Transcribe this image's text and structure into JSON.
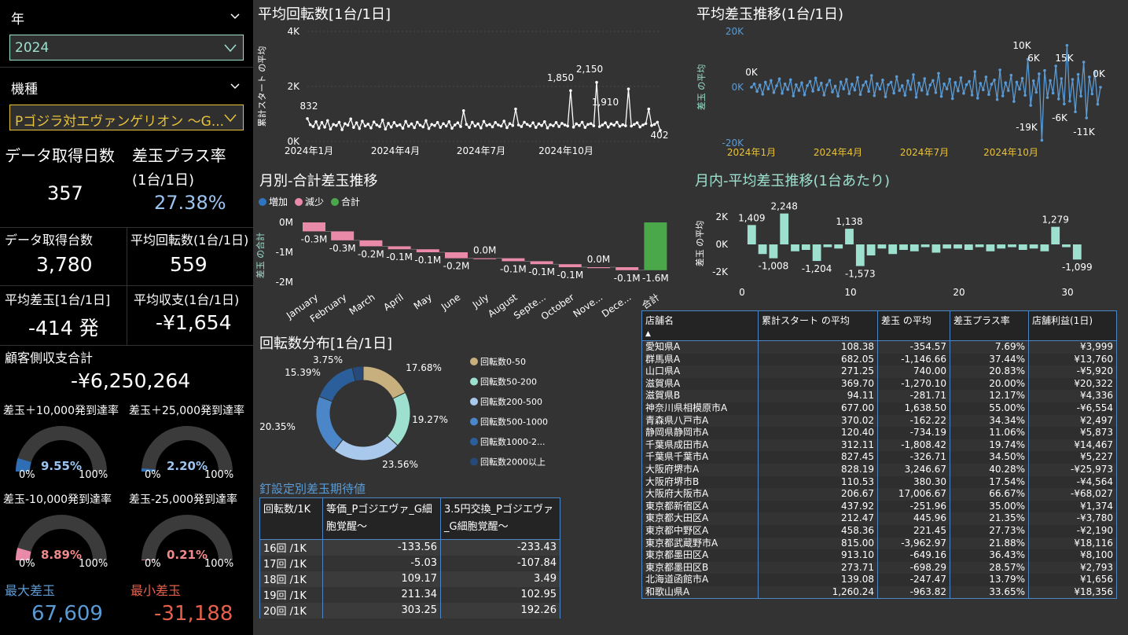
{
  "filters": {
    "year": {
      "title": "年",
      "value": "2024"
    },
    "machine": {
      "title": "機種",
      "value": "Pゴジラ対エヴァンゲリオン ～G..."
    }
  },
  "kpis": {
    "data_days": {
      "label": "データ取得日数",
      "value": "357"
    },
    "plus_rate": {
      "label": "差玉プラス率",
      "sub": "(1台/1日)",
      "value": "27.38%"
    },
    "data_units": {
      "label": "データ取得台数",
      "value": "3,780"
    },
    "avg_spins": {
      "label": "平均回転数(1台/1日)",
      "value": "559"
    },
    "avg_diff": {
      "label": "平均差玉[1台/1日]",
      "value": "-414 発"
    },
    "avg_balance": {
      "label": "平均収支(1台/1日)",
      "value": "-¥1,654"
    },
    "customer_total": {
      "label": "顧客側収支合計",
      "value": "-¥6,250,264"
    },
    "max_diff": {
      "label": "最大差玉",
      "value": "67,609"
    },
    "min_diff": {
      "label": "最小差玉",
      "value": "-31,188"
    }
  },
  "gauges": [
    {
      "label": "差玉＋10,000発到達率",
      "value": "9.55%",
      "fraction": 0.0955,
      "min": "0%",
      "max": "100%",
      "color": "#2f6db5",
      "text_color": "#9cc4f0"
    },
    {
      "label": "差玉＋25,000発到達率",
      "value": "2.20%",
      "fraction": 0.022,
      "min": "0%",
      "max": "100%",
      "color": "#2f6db5",
      "text_color": "#9cc4f0"
    },
    {
      "label": "差玉-10,000発到達率",
      "value": "8.89%",
      "fraction": 0.0889,
      "min": "0%",
      "max": "100%",
      "color": "#e98aa8",
      "text_color": "#f08a8a"
    },
    {
      "label": "差玉-25,000発到達率",
      "value": "0.21%",
      "fraction": 0.0021,
      "min": "0%",
      "max": "100%",
      "color": "#e98aa8",
      "text_color": "#f08a8a"
    }
  ],
  "visual_titles": {
    "avg_spins": "平均回転数[1台/1日]",
    "avg_diff_trend": "平均差玉推移(1台/1日)",
    "monthly_total": "月別-合計差玉推移",
    "intramonth": "月内-平均差玉推移(1台あたり)",
    "spin_dist": "回転数分布[1台/1日]",
    "nail_setting": "釘設定別差玉期待値"
  },
  "chart_data": [
    {
      "type": "line",
      "id": "avg_spins",
      "ylabel": "累計スタート の平均",
      "yticks": [
        "4K",
        "2K",
        "0K"
      ],
      "ylim": [
        0,
        4000
      ],
      "xticks": [
        "2024年1月",
        "2024年4月",
        "2024年7月",
        "2024年10月"
      ],
      "annotations": [
        "832",
        "1,850",
        "2,150",
        "1,910",
        "402"
      ],
      "series": [
        {
          "values": [
            832,
            610,
            540,
            720,
            480,
            690,
            520,
            760,
            450,
            620,
            580,
            700,
            430,
            650,
            590,
            820,
            510,
            680,
            470,
            740,
            560,
            630,
            490,
            710,
            600,
            540,
            780,
            450,
            660,
            520,
            690,
            570,
            610,
            480,
            730,
            550,
            640,
            500,
            700,
            590,
            530,
            760,
            470,
            620,
            580,
            690,
            510,
            650,
            560,
            720,
            480,
            600,
            680,
            540,
            1120,
            620,
            510,
            700,
            560,
            640,
            490,
            730,
            580,
            620,
            530,
            690,
            600,
            560,
            740,
            500,
            650,
            580,
            1180,
            600,
            540,
            700,
            620,
            560,
            680,
            510,
            640,
            580,
            720,
            490,
            610,
            570,
            690,
            540,
            660,
            600,
            560,
            1850,
            520,
            640,
            580,
            700,
            510,
            620,
            650,
            570,
            2150,
            540,
            600,
            680,
            520,
            640,
            590,
            700,
            550,
            610,
            570,
            1910,
            560,
            620,
            680,
            530,
            600,
            650,
            1180,
            580,
            620,
            700,
            402
          ]
        }
      ]
    },
    {
      "type": "line",
      "id": "avg_diff_trend",
      "ylabel": "差玉 の平均",
      "yticks": [
        "20K",
        "0K",
        "-20K"
      ],
      "ylim": [
        -20000,
        20000
      ],
      "xticks": [
        "2024年1月",
        "2024年4月",
        "2024年7月",
        "2024年10月"
      ],
      "annotations": [
        "0K",
        "10K",
        "6K",
        "15K",
        "0K",
        "-19K",
        "-6K",
        "-11K"
      ],
      "series": [
        {
          "values": [
            0,
            1200,
            -1500,
            800,
            -2500,
            1800,
            -600,
            2400,
            -1900,
            500,
            3000,
            -2200,
            1200,
            -800,
            2700,
            -3100,
            900,
            -1200,
            1600,
            -2700,
            600,
            2100,
            -1400,
            3300,
            -900,
            1500,
            -2800,
            800,
            2500,
            -1700,
            400,
            -3200,
            1900,
            -600,
            2800,
            -2300,
            1100,
            -1000,
            3500,
            -2600,
            700,
            2000,
            -1500,
            4200,
            -3000,
            1300,
            -700,
            2600,
            -3400,
            900,
            1800,
            -2100,
            3800,
            -1200,
            600,
            -2900,
            2300,
            -800,
            4500,
            -3600,
            1500,
            -1100,
            3100,
            -2500,
            800,
            2400,
            -1900,
            5000,
            -3300,
            1200,
            -600,
            2900,
            -4100,
            1700,
            -1300,
            3400,
            -2200,
            900,
            2100,
            -2800,
            5600,
            -3900,
            1400,
            -900,
            3700,
            -2600,
            1100,
            2600,
            -4400,
            6200,
            -3100,
            1600,
            -1200,
            4300,
            -5100,
            1800,
            -700,
            3200,
            -2900,
            10000,
            -6500,
            2300,
            -1800,
            4800,
            -19000,
            6000,
            -3700,
            2400,
            -2100,
            7600,
            -4200,
            3100,
            -6000,
            15000,
            -5000,
            2800,
            -8800,
            4600,
            -3200,
            9000,
            -11000,
            3700,
            -2400,
            5400,
            -6100,
            0
          ]
        }
      ]
    },
    {
      "type": "bar",
      "id": "monthly_total",
      "subtype": "waterfall",
      "ylabel": "差玉 の合計",
      "yticks": [
        "0M",
        "-1M",
        "-2M"
      ],
      "ylim": [
        -2000000,
        100000
      ],
      "legend": [
        {
          "name": "増加",
          "color": "#2f74c0"
        },
        {
          "name": "減少",
          "color": "#e98aa8"
        },
        {
          "name": "合計",
          "color": "#4aa84a"
        }
      ],
      "categories": [
        "January",
        "February",
        "March",
        "April",
        "May",
        "June",
        "July",
        "August",
        "Septe...",
        "October",
        "Nove...",
        "Dece...",
        "合計"
      ],
      "values": [
        -0.3,
        -0.3,
        -0.2,
        -0.1,
        -0.1,
        -0.2,
        0.0,
        -0.1,
        -0.1,
        -0.1,
        0.0,
        -0.1,
        -1.6
      ],
      "value_labels": [
        "-0.3M",
        "-0.3M",
        "-0.2M",
        "-0.1M",
        "-0.1M",
        "-0.2M",
        "0.0M",
        "-0.1M",
        "-0.1M",
        "-0.1M",
        "0.0M",
        "-0.1M",
        "-1.6M"
      ]
    },
    {
      "type": "bar",
      "id": "intramonth",
      "ylabel": "差玉 の平均",
      "yticks": [
        "2K",
        "0K",
        "-2K"
      ],
      "ylim": [
        -2500,
        2500
      ],
      "xticks": [
        "0",
        "10",
        "20",
        "30"
      ],
      "x": [
        1,
        2,
        3,
        4,
        5,
        6,
        7,
        8,
        9,
        10,
        11,
        12,
        13,
        14,
        15,
        16,
        17,
        18,
        19,
        20,
        21,
        22,
        23,
        24,
        25,
        26,
        27,
        28,
        29,
        30,
        31
      ],
      "values": [
        1409,
        -700,
        -1008,
        2248,
        -500,
        -400,
        -1204,
        -200,
        -300,
        1138,
        -1573,
        -800,
        -300,
        -700,
        -400,
        -500,
        -200,
        -600,
        -300,
        -300,
        -400,
        -200,
        -500,
        -300,
        -200,
        -400,
        -300,
        -500,
        1279,
        -200,
        -1099
      ],
      "value_labels": [
        {
          "x": 1,
          "text": "1,409"
        },
        {
          "x": 3,
          "text": "-1,008"
        },
        {
          "x": 4,
          "text": "2,248"
        },
        {
          "x": 7,
          "text": "-1,204"
        },
        {
          "x": 10,
          "text": "1,138"
        },
        {
          "x": 11,
          "text": "-1,573"
        },
        {
          "x": 29,
          "text": "1,279"
        },
        {
          "x": 31,
          "text": "-1,099"
        }
      ]
    },
    {
      "type": "pie",
      "id": "spin_dist",
      "categories": [
        "回転数0-50",
        "回転数50-200",
        "回転数200-500",
        "回転数500-1000",
        "回転数1000-2...",
        "回転数2000以上"
      ],
      "values": [
        17.68,
        19.27,
        23.56,
        20.35,
        15.39,
        3.75
      ],
      "value_labels": [
        "17.68%",
        "19.27%",
        "23.56%",
        "20.35%",
        "15.39%",
        "3.75%"
      ],
      "colors": [
        "#c8b07e",
        "#9ee0cf",
        "#a8c8ec",
        "#4a86c8",
        "#2b5f9c",
        "#274a7a"
      ]
    }
  ],
  "nail_table": {
    "headers": [
      "回転数/1K",
      "等価_Pゴジエヴァ_G細胞覚醒～",
      "3.5円交換_Pゴジエヴァ_G細胞覚醒～"
    ],
    "rows": [
      [
        "16回 /1K",
        "-133.56",
        "-233.43"
      ],
      [
        "17回 /1K",
        "-5.03",
        "-107.84"
      ],
      [
        "18回 /1K",
        "109.17",
        "3.49"
      ],
      [
        "19回 /1K",
        "211.34",
        "102.95"
      ],
      [
        "20回 /1K",
        "303.25",
        "192.26"
      ]
    ]
  },
  "store_table": {
    "headers": [
      "店舗名",
      "累計スタート の平均",
      "差玉 の平均",
      "差玉プラス率",
      "店舗利益(1日)"
    ],
    "sort_indicator": "▲",
    "rows": [
      [
        "愛知県A",
        "108.38",
        "-354.57",
        "7.69%",
        "¥3,999"
      ],
      [
        "群馬県A",
        "682.05",
        "-1,146.66",
        "37.44%",
        "¥13,760"
      ],
      [
        "山口県A",
        "271.25",
        "740.00",
        "20.83%",
        "-¥5,920"
      ],
      [
        "滋賀県A",
        "369.70",
        "-1,270.10",
        "20.00%",
        "¥20,322"
      ],
      [
        "滋賀県B",
        "94.11",
        "-281.71",
        "12.17%",
        "¥4,336"
      ],
      [
        "神奈川県相模原市A",
        "677.00",
        "1,638.50",
        "55.00%",
        "-¥6,554"
      ],
      [
        "青森県八戸市A",
        "370.02",
        "-162.22",
        "34.34%",
        "¥2,497"
      ],
      [
        "静岡県静岡市A",
        "120.40",
        "-734.19",
        "11.06%",
        "¥5,873"
      ],
      [
        "千葉県成田市A",
        "312.11",
        "-1,808.42",
        "19.74%",
        "¥14,467"
      ],
      [
        "千葉県千葉市A",
        "827.45",
        "-326.71",
        "34.50%",
        "¥5,227"
      ],
      [
        "大阪府堺市A",
        "828.19",
        "3,246.67",
        "40.28%",
        "-¥25,973"
      ],
      [
        "大阪府堺市B",
        "110.53",
        "380.30",
        "17.54%",
        "-¥4,564"
      ],
      [
        "大阪府大阪市A",
        "206.67",
        "17,006.67",
        "66.67%",
        "-¥68,027"
      ],
      [
        "東京都新宿区A",
        "437.92",
        "-251.96",
        "35.00%",
        "¥1,374"
      ],
      [
        "東京都大田区A",
        "212.47",
        "445.96",
        "21.35%",
        "-¥3,780"
      ],
      [
        "東京都中野区A",
        "458.36",
        "221.45",
        "27.73%",
        "-¥2,190"
      ],
      [
        "東京都武蔵野市A",
        "815.00",
        "-3,962.97",
        "21.88%",
        "¥18,116"
      ],
      [
        "東京都墨田区A",
        "913.10",
        "-649.16",
        "36.43%",
        "¥8,100"
      ],
      [
        "東京都墨田区B",
        "273.71",
        "-698.29",
        "28.57%",
        "¥2,793"
      ],
      [
        "北海道函館市A",
        "139.08",
        "-247.47",
        "13.79%",
        "¥1,656"
      ],
      [
        "和歌山県A",
        "1,260.24",
        "-963.82",
        "33.65%",
        "¥18,356"
      ]
    ]
  },
  "colors": {
    "accent": "#4a86c8",
    "teal": "#9ee0cf",
    "line_blue": "#5b9bd5",
    "min_red": "#e5604a",
    "max_blue": "#5b9bd5",
    "axis_yellow": "#e8c23a"
  }
}
